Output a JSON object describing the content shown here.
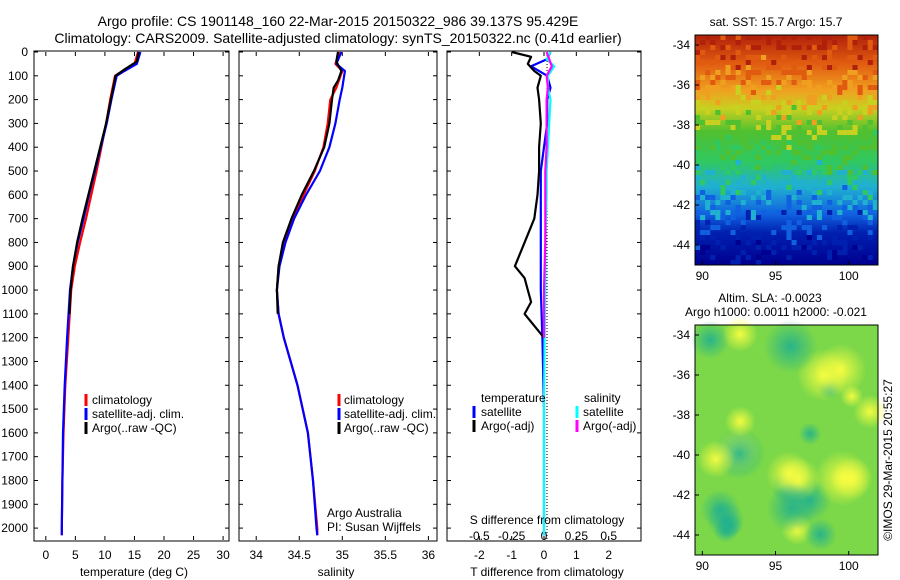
{
  "header": {
    "title_line1": "Argo profile: CS 1901148_160 22-Mar-2015 20150322_986 39.137S 95.429E",
    "title_line2": "Climatology: CARS2009. Satellite-adjusted climatology: synTS_20150322.nc (0.41d earlier)"
  },
  "colors": {
    "climatology": "#ff0000",
    "satellite": "#0000ff",
    "argo": "#000000",
    "salinity_satellite": "#00ffff",
    "salinity_argo": "#ff00ff"
  },
  "legend": {
    "climatology": "climatology",
    "satellite_clim": "satellite-adj. clim.",
    "argo_raw": "Argo(..raw -QC)",
    "diff_temp_head": "temperature",
    "diff_sal_head": "salinity",
    "diff_satellite": "satellite",
    "diff_argo": "Argo(-adj)"
  },
  "annotations": {
    "institution": "Argo Australia",
    "pi": "PI: Susan Wijffels",
    "s_diff_title": "S difference from climatology",
    "sst_title": "sat. SST: 15.7  Argo: 15.7",
    "sla_title_1": "Altim. SLA: -0.0023",
    "sla_title_2": "Argo h1000: 0.0011  h2000: -0.021",
    "credit": "©IMOS 29-Mar-2015 20:55:27"
  },
  "chart_data": [
    {
      "type": "line",
      "panel": "temperature",
      "xlabel": "temperature (deg C)",
      "xlim": [
        -2,
        31
      ],
      "xticks": [
        0,
        5,
        10,
        15,
        20,
        25,
        30
      ],
      "ylim": [
        0,
        2050
      ],
      "yticks": [
        0,
        100,
        200,
        300,
        400,
        500,
        600,
        700,
        800,
        900,
        1000,
        1100,
        1200,
        1300,
        1400,
        1500,
        1600,
        1700,
        1800,
        1900,
        2000
      ],
      "y_reversed": true,
      "series": [
        {
          "name": "climatology",
          "color": "#ff0000",
          "y": [
            0,
            50,
            80,
            100,
            200,
            300,
            400,
            500,
            600,
            700,
            800,
            900,
            1000,
            1200,
            1400,
            1600,
            1800,
            2000,
            2030
          ],
          "x": [
            15.6,
            15.0,
            13.0,
            11.7,
            10.9,
            10.2,
            9.4,
            8.6,
            7.7,
            6.8,
            5.8,
            4.9,
            4.3,
            3.8,
            3.3,
            3.0,
            2.8,
            2.7,
            2.7
          ]
        },
        {
          "name": "satellite-adj. clim.",
          "color": "#0000ff",
          "y": [
            0,
            50,
            80,
            100,
            200,
            300,
            400,
            500,
            600,
            700,
            800,
            900,
            1000,
            1200,
            1400,
            1600,
            1800,
            2000,
            2030
          ],
          "x": [
            16.0,
            15.4,
            13.3,
            12.0,
            11.1,
            10.3,
            9.3,
            8.3,
            7.3,
            6.4,
            5.4,
            4.6,
            4.1,
            3.6,
            3.2,
            2.9,
            2.8,
            2.7,
            2.7
          ]
        },
        {
          "name": "Argo(..raw -QC)",
          "color": "#000000",
          "y": [
            0,
            40,
            70,
            100,
            150,
            200,
            300,
            400,
            500,
            600,
            700,
            800,
            900,
            1000,
            1100
          ],
          "x": [
            15.7,
            15.4,
            13.5,
            11.8,
            11.4,
            11.0,
            10.2,
            9.2,
            8.2,
            7.2,
            6.2,
            5.3,
            4.6,
            4.2,
            4.0
          ]
        }
      ]
    },
    {
      "type": "line",
      "panel": "salinity",
      "xlabel": "salinity",
      "xlim": [
        33.8,
        36.1
      ],
      "xticks": [
        34,
        34.5,
        35,
        35.5,
        36
      ],
      "xticklabels": [
        "34",
        "34.5",
        "35",
        "35.5",
        "36"
      ],
      "ylim": [
        0,
        2050
      ],
      "y_reversed": true,
      "series": [
        {
          "name": "climatology",
          "color": "#ff0000",
          "y": [
            0,
            50,
            80,
            150,
            200,
            300,
            400,
            500,
            600,
            700,
            800,
            900,
            1000,
            1100,
            1200,
            1400,
            1600,
            1800,
            2000,
            2030
          ],
          "x": [
            34.97,
            34.92,
            35.0,
            34.93,
            34.86,
            34.83,
            34.78,
            34.68,
            34.55,
            34.43,
            34.33,
            34.26,
            34.24,
            34.26,
            34.32,
            34.48,
            34.6,
            34.66,
            34.71,
            34.71
          ]
        },
        {
          "name": "satellite-adj. clim.",
          "color": "#0000ff",
          "y": [
            0,
            50,
            80,
            150,
            200,
            300,
            400,
            500,
            600,
            700,
            800,
            900,
            1000,
            1100,
            1200,
            1400,
            1600,
            1800,
            2000,
            2030
          ],
          "x": [
            34.99,
            34.93,
            35.03,
            35.0,
            34.97,
            34.92,
            34.85,
            34.74,
            34.58,
            34.44,
            34.34,
            34.27,
            34.24,
            34.26,
            34.32,
            34.48,
            34.6,
            34.66,
            34.7,
            34.71
          ]
        },
        {
          "name": "Argo(..raw -QC)",
          "color": "#000000",
          "y": [
            0,
            40,
            80,
            120,
            150,
            200,
            300,
            400,
            500,
            600,
            700,
            800,
            900,
            1000,
            1100
          ],
          "x": [
            34.95,
            34.93,
            34.99,
            34.95,
            34.9,
            34.88,
            34.85,
            34.79,
            34.67,
            34.53,
            34.41,
            34.31,
            34.26,
            34.24,
            34.25
          ]
        }
      ]
    },
    {
      "type": "line",
      "panel": "difference",
      "xlabel": "T difference from climatology",
      "xlabel2": "S difference from climatology",
      "xlim": [
        -3,
        3
      ],
      "xticks": [
        -2,
        -1,
        0,
        1,
        2
      ],
      "xticks2": [
        -0.5,
        -0.25,
        0,
        0.25,
        0.5
      ],
      "ylim": [
        0,
        2050
      ],
      "y_reversed": true,
      "series": [
        {
          "name": "temperature satellite",
          "color": "#0000ff",
          "y": [
            0,
            30,
            60,
            100,
            150,
            200,
            300,
            400,
            500,
            600,
            800,
            1000,
            1200,
            1500,
            1800,
            2030
          ],
          "x": [
            0.2,
            0.1,
            -0.4,
            0.1,
            0.2,
            0.1,
            0.1,
            0.0,
            -0.1,
            -0.1,
            -0.1,
            -0.1,
            -0.05,
            0.0,
            0.0,
            0.0
          ]
        },
        {
          "name": "temperature Argo(-adj)",
          "color": "#000000",
          "y": [
            0,
            20,
            50,
            80,
            100,
            150,
            200,
            300,
            400,
            500,
            600,
            700,
            800,
            900,
            950,
            1000,
            1050,
            1100,
            1150,
            1200
          ],
          "x": [
            -1.0,
            -0.4,
            -0.5,
            -0.3,
            -0.1,
            -0.2,
            -0.15,
            -0.1,
            -0.15,
            -0.15,
            -0.2,
            -0.3,
            -0.6,
            -0.9,
            -0.6,
            -0.5,
            -0.4,
            -0.6,
            -0.3,
            0.0
          ]
        },
        {
          "name": "salinity satellite",
          "color": "#00ffff",
          "y": [
            0,
            30,
            60,
            100,
            150,
            200,
            300,
            400,
            500,
            600,
            800,
            1000,
            1200,
            1500,
            1800,
            2030
          ],
          "x": [
            0.05,
            0.02,
            0.08,
            0.03,
            0.03,
            0.05,
            0.04,
            0.03,
            0.02,
            0.02,
            0.01,
            0.01,
            0.005,
            0.0,
            0.0,
            0.0
          ]
        },
        {
          "name": "salinity Argo(-adj)",
          "color": "#ff00ff",
          "y": [
            0,
            30,
            60,
            100,
            150,
            200,
            300,
            400,
            500,
            600,
            800,
            1000,
            1100,
            1200
          ],
          "x": [
            0.02,
            0.04,
            0.06,
            0.02,
            0.03,
            0.02,
            0.02,
            0.02,
            0.01,
            0.01,
            0.01,
            0.0,
            0.0,
            0.0
          ]
        }
      ]
    },
    {
      "type": "heatmap",
      "panel": "sst_map",
      "title": "sat. SST: 15.7  Argo: 15.7",
      "xlim": [
        89.5,
        102
      ],
      "ylim": [
        -45,
        -33.5
      ],
      "xticks": [
        90,
        95,
        100
      ],
      "yticks": [
        -34,
        -36,
        -38,
        -40,
        -42,
        -44
      ]
    },
    {
      "type": "heatmap",
      "panel": "sla_map",
      "title": "Altim. SLA: -0.0023",
      "xlim": [
        89.5,
        102
      ],
      "ylim": [
        -45,
        -33.5
      ],
      "xticks": [
        90,
        95,
        100
      ],
      "yticks": [
        -34,
        -36,
        -38,
        -40,
        -42,
        -44
      ]
    }
  ]
}
